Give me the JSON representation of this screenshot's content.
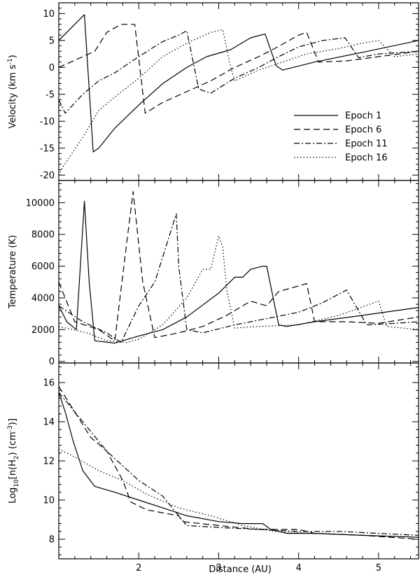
{
  "chart_data": {
    "type": "line",
    "xlabel": "Distance (AU)",
    "xlim": [
      1.0,
      5.5
    ],
    "xticks": [
      2,
      3,
      4,
      5
    ],
    "legend": {
      "placement": "lower-right of top panel",
      "entries": [
        "Epoch 1",
        "Epoch 6",
        "Epoch 11",
        "Epoch 16"
      ]
    },
    "styles": {
      "Epoch 1": "solid",
      "Epoch 6": "dashed",
      "Epoch 11": "dashdot",
      "Epoch 16": "dotted"
    },
    "panels": [
      {
        "id": "velocity",
        "ylabel_parts": [
          "Velocity (km s",
          "-1",
          ")"
        ],
        "ylim": [
          -21,
          12
        ],
        "yticks": [
          -20,
          -15,
          -10,
          -5,
          0,
          5,
          10
        ],
        "series": [
          {
            "name": "Epoch 1",
            "x": [
              1.0,
              1.2,
              1.32,
              1.43,
              1.5,
              1.7,
              2.0,
              2.3,
              2.6,
              2.85,
              3.15,
              3.4,
              3.58,
              3.72,
              3.8,
              4.2,
              4.8,
              5.5
            ],
            "y": [
              5.0,
              8.0,
              9.8,
              -15.7,
              -15.0,
              -11.3,
              -7.0,
              -3.0,
              0.0,
              2.0,
              3.3,
              5.5,
              6.2,
              0.3,
              -0.5,
              1.0,
              2.8,
              5.0
            ]
          },
          {
            "name": "Epoch 6",
            "x": [
              1.0,
              1.3,
              1.45,
              1.6,
              1.78,
              1.95,
              2.08,
              2.3,
              2.6,
              2.9,
              3.2,
              3.5,
              3.7,
              4.0,
              4.1,
              4.25,
              4.6,
              5.0,
              5.5
            ],
            "y": [
              0.0,
              2.0,
              3.0,
              6.5,
              8.0,
              8.0,
              -8.5,
              -6.5,
              -4.5,
              -2.5,
              0.0,
              2.0,
              3.5,
              6.0,
              6.5,
              1.0,
              1.2,
              2.0,
              3.0
            ]
          },
          {
            "name": "Epoch 11",
            "x": [
              1.0,
              1.08,
              1.3,
              1.5,
              1.7,
              2.0,
              2.3,
              2.5,
              2.6,
              2.75,
              2.9,
              3.2,
              3.5,
              3.75,
              4.0,
              4.3,
              4.58,
              4.75,
              5.0,
              5.5
            ],
            "y": [
              -6.0,
              -8.5,
              -5.0,
              -2.5,
              -1.0,
              2.0,
              4.8,
              6.0,
              6.8,
              -4.0,
              -4.8,
              -2.0,
              0.0,
              2.0,
              3.8,
              5.0,
              5.5,
              1.8,
              2.5,
              3.0
            ]
          },
          {
            "name": "Epoch 16",
            "x": [
              1.0,
              1.05,
              1.3,
              1.5,
              1.7,
              2.0,
              2.3,
              2.6,
              2.9,
              3.05,
              3.15,
              3.2,
              3.5,
              3.8,
              4.1,
              4.5,
              4.8,
              5.0,
              5.2,
              5.5
            ],
            "y": [
              -20.0,
              -18.5,
              -13.0,
              -8.0,
              -5.5,
              -2.0,
              2.0,
              4.5,
              6.5,
              7.0,
              0.0,
              -2.5,
              -0.5,
              1.0,
              2.5,
              3.5,
              4.5,
              5.0,
              2.0,
              2.5
            ]
          }
        ]
      },
      {
        "id": "temperature",
        "ylabel_parts": [
          "Temperature (K)"
        ],
        "ylim": [
          -100,
          11400
        ],
        "yticks": [
          0,
          2000,
          4000,
          6000,
          8000,
          10000
        ],
        "series": [
          {
            "name": "Epoch 1",
            "x": [
              1.0,
              1.1,
              1.22,
              1.32,
              1.38,
              1.45,
              1.7,
              2.0,
              2.3,
              2.6,
              3.0,
              3.2,
              3.3,
              3.4,
              3.55,
              3.6,
              3.75,
              3.85,
              4.2,
              4.8,
              5.5
            ],
            "y": [
              3500,
              2500,
              2000,
              10100,
              5000,
              1300,
              1150,
              1600,
              2000,
              2800,
              4300,
              5300,
              5300,
              5800,
              6000,
              6000,
              2300,
              2200,
              2500,
              2900,
              3400
            ]
          },
          {
            "name": "Epoch 6",
            "x": [
              1.0,
              1.2,
              1.5,
              1.7,
              1.85,
              1.93,
              2.05,
              2.2,
              2.5,
              2.8,
              3.1,
              3.4,
              3.6,
              3.75,
              4.1,
              4.2,
              4.6,
              5.0,
              5.5
            ],
            "y": [
              5000,
              2500,
              2000,
              1300,
              7500,
              10700,
              5000,
              1500,
              1800,
              2200,
              2900,
              3800,
              3500,
              4400,
              4900,
              2500,
              2500,
              2400,
              2800
            ]
          },
          {
            "name": "Epoch 11",
            "x": [
              1.0,
              1.3,
              1.6,
              1.78,
              2.0,
              2.2,
              2.47,
              2.5,
              2.6,
              2.8,
              3.2,
              3.6,
              4.0,
              4.3,
              4.6,
              4.85,
              5.2,
              5.5
            ],
            "y": [
              3500,
              2500,
              1800,
              1200,
              3500,
              5000,
              9300,
              6000,
              2000,
              1800,
              2300,
              2700,
              3100,
              3700,
              4500,
              2300,
              2400,
              2500
            ]
          },
          {
            "name": "Epoch 16",
            "x": [
              1.0,
              1.35,
              1.6,
              1.85,
              2.0,
              2.3,
              2.6,
              2.8,
              2.9,
              3.0,
              3.05,
              3.1,
              3.2,
              3.5,
              4.0,
              4.5,
              5.0,
              5.1,
              5.5
            ],
            "y": [
              2200,
              1800,
              1300,
              1200,
              1400,
              2300,
              4000,
              5800,
              5800,
              7900,
              7200,
              4500,
              2100,
              2200,
              2300,
              2900,
              3800,
              2200,
              2000
            ]
          }
        ]
      },
      {
        "id": "density",
        "ylabel_parts": [
          "Log",
          "10",
          "[n(H",
          "2",
          ") (cm",
          "-3",
          ")]"
        ],
        "ylim": [
          7.0,
          17.0
        ],
        "yticks": [
          8,
          10,
          12,
          14,
          16
        ],
        "series": [
          {
            "name": "Epoch 1",
            "x": [
              1.0,
              1.08,
              1.18,
              1.3,
              1.45,
              1.7,
              2.0,
              2.3,
              2.6,
              3.0,
              3.3,
              3.55,
              3.65,
              3.85,
              4.2,
              4.8,
              5.5
            ],
            "y": [
              15.5,
              14.5,
              13.0,
              11.5,
              10.7,
              10.4,
              10.0,
              9.6,
              9.2,
              8.9,
              8.8,
              8.8,
              8.5,
              8.3,
              8.3,
              8.2,
              8.1
            ]
          },
          {
            "name": "Epoch 6",
            "x": [
              1.0,
              1.2,
              1.4,
              1.6,
              1.8,
              1.9,
              2.1,
              2.5,
              2.55,
              3.0,
              3.5,
              4.0,
              4.2,
              4.8,
              5.5
            ],
            "y": [
              15.8,
              14.5,
              13.2,
              12.5,
              11.0,
              9.9,
              9.5,
              9.2,
              8.9,
              8.7,
              8.5,
              8.5,
              8.3,
              8.2,
              8.0
            ]
          },
          {
            "name": "Epoch 11",
            "x": [
              1.0,
              1.3,
              1.6,
              2.0,
              2.3,
              2.5,
              2.6,
              3.0,
              3.5,
              4.0,
              4.5,
              5.0,
              5.5
            ],
            "y": [
              15.5,
              14.0,
              12.5,
              11.0,
              10.2,
              9.2,
              8.7,
              8.6,
              8.5,
              8.4,
              8.4,
              8.3,
              8.2
            ]
          },
          {
            "name": "Epoch 16",
            "x": [
              1.0,
              1.2,
              1.5,
              1.8,
              2.1,
              2.5,
              2.9,
              3.3,
              3.7,
              4.2,
              4.8,
              5.5
            ],
            "y": [
              12.6,
              12.2,
              11.5,
              11.0,
              10.3,
              9.6,
              9.2,
              8.7,
              8.4,
              8.3,
              8.2,
              8.1
            ]
          }
        ]
      }
    ]
  }
}
